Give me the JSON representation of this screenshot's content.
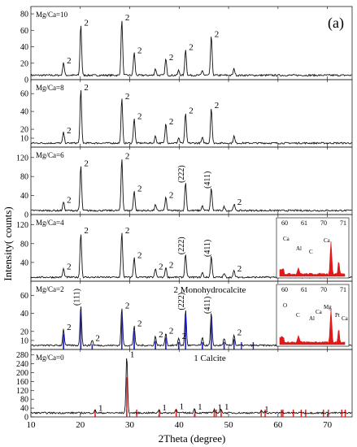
{
  "chart_data": [
    {
      "type": "line",
      "panel_label": "(a)",
      "label": "Mg/Ca=10",
      "yticks": [
        0,
        20,
        40,
        60,
        80
      ],
      "ylim": [
        0,
        85
      ],
      "peaks": [
        {
          "x": 16.6,
          "y": 16,
          "label": "2"
        },
        {
          "x": 20.1,
          "y": 62,
          "label": "2"
        },
        {
          "x": 28.4,
          "y": 68,
          "label": "2"
        },
        {
          "x": 30.9,
          "y": 28,
          "label": "2"
        },
        {
          "x": 35.2,
          "y": 8,
          "label": ""
        },
        {
          "x": 37.3,
          "y": 20,
          "label": "2"
        },
        {
          "x": 39.9,
          "y": 6,
          "label": ""
        },
        {
          "x": 41.3,
          "y": 32,
          "label": "2"
        },
        {
          "x": 44.7,
          "y": 6,
          "label": ""
        },
        {
          "x": 46.5,
          "y": 48,
          "label": "2"
        },
        {
          "x": 51.1,
          "y": 8,
          "label": ""
        }
      ]
    },
    {
      "type": "line",
      "label": "Mg/Ca=8",
      "yticks": [
        10,
        20,
        40,
        60
      ],
      "ylim": [
        0,
        72
      ],
      "peaks": [
        {
          "x": 16.6,
          "y": 12,
          "label": "2"
        },
        {
          "x": 20.1,
          "y": 60,
          "label": "2"
        },
        {
          "x": 28.4,
          "y": 50,
          "label": "2"
        },
        {
          "x": 30.9,
          "y": 28,
          "label": "2"
        },
        {
          "x": 35.2,
          "y": 8,
          "label": ""
        },
        {
          "x": 37.3,
          "y": 22,
          "label": "2"
        },
        {
          "x": 39.9,
          "y": 6,
          "label": ""
        },
        {
          "x": 41.3,
          "y": 34,
          "label": "2"
        },
        {
          "x": 44.7,
          "y": 6,
          "label": ""
        },
        {
          "x": 46.5,
          "y": 40,
          "label": "2"
        },
        {
          "x": 51.1,
          "y": 8,
          "label": ""
        }
      ]
    },
    {
      "type": "line",
      "label": "Mg/Ca=6",
      "yticks": [
        0,
        40,
        80,
        120
      ],
      "ylim": [
        0,
        135
      ],
      "peaks": [
        {
          "x": 16.6,
          "y": 18,
          "label": "2"
        },
        {
          "x": 20.1,
          "y": 95,
          "label": "2"
        },
        {
          "x": 28.4,
          "y": 110,
          "label": "2"
        },
        {
          "x": 30.9,
          "y": 42,
          "label": "2"
        },
        {
          "x": 35.2,
          "y": 12,
          "label": ""
        },
        {
          "x": 37.3,
          "y": 28,
          "label": "2"
        },
        {
          "x": 41.3,
          "y": 60,
          "label": "(222)"
        },
        {
          "x": 44.7,
          "y": 10,
          "label": ""
        },
        {
          "x": 46.5,
          "y": 48,
          "label": "(411)"
        },
        {
          "x": 49.1,
          "y": 8,
          "label": ""
        },
        {
          "x": 51.1,
          "y": 14,
          "label": "2"
        }
      ]
    },
    {
      "type": "line",
      "label": "Mg/Ca=4",
      "yticks": [
        40,
        80,
        120
      ],
      "ylim": [
        0,
        135
      ],
      "peaks": [
        {
          "x": 16.6,
          "y": 18,
          "label": "2"
        },
        {
          "x": 20.1,
          "y": 95,
          "label": "2"
        },
        {
          "x": 28.4,
          "y": 95,
          "label": "2"
        },
        {
          "x": 30.9,
          "y": 42,
          "label": "2"
        },
        {
          "x": 35.2,
          "y": 18,
          "label": "2"
        },
        {
          "x": 37.3,
          "y": 22,
          "label": "2"
        },
        {
          "x": 41.3,
          "y": 50,
          "label": "(222)"
        },
        {
          "x": 44.7,
          "y": 10,
          "label": ""
        },
        {
          "x": 46.5,
          "y": 45,
          "label": "(411)"
        },
        {
          "x": 49.1,
          "y": 8,
          "label": ""
        },
        {
          "x": 51.1,
          "y": 14,
          "label": "2"
        }
      ],
      "inset": {
        "axis_ticks": [
          "60",
          "61",
          "70",
          "71"
        ],
        "labels": [
          "Ca",
          "Al",
          "C",
          "Ca"
        ]
      }
    },
    {
      "type": "line",
      "label": "Mg/Ca=2",
      "legend": "2 Monohydrocalcite",
      "yticks": [
        10,
        20,
        40,
        60
      ],
      "ylim": [
        0,
        72
      ],
      "reference_color": "#1f1fd6",
      "reference_lines": [
        16.6,
        20.1,
        28.4,
        30.9,
        35.2,
        37.3,
        39.9,
        41.3,
        44.7,
        46.5,
        49.1,
        51.1,
        52.6,
        55.0
      ],
      "peaks": [
        {
          "x": 16.6,
          "y": 18,
          "label": "2"
        },
        {
          "x": 20.1,
          "y": 45,
          "label": "(111)"
        },
        {
          "x": 22.4,
          "y": 6,
          "label": "2"
        },
        {
          "x": 28.4,
          "y": 42,
          "label": "2"
        },
        {
          "x": 30.9,
          "y": 22,
          "label": "2"
        },
        {
          "x": 35.2,
          "y": 10,
          "label": "2"
        },
        {
          "x": 37.3,
          "y": 14,
          "label": "2"
        },
        {
          "x": 39.9,
          "y": 8,
          "label": "2"
        },
        {
          "x": 41.3,
          "y": 40,
          "label": "(222)"
        },
        {
          "x": 44.7,
          "y": 8,
          "label": ""
        },
        {
          "x": 46.5,
          "y": 36,
          "label": "(411)"
        },
        {
          "x": 49.1,
          "y": 8,
          "label": ""
        },
        {
          "x": 51.1,
          "y": 12,
          "label": "2"
        }
      ],
      "inset": {
        "axis_ticks": [
          "60",
          "61",
          "70",
          "71"
        ],
        "labels": [
          "O",
          "C",
          "Al",
          "Mg",
          "Pt",
          "Ca",
          "Ca"
        ]
      }
    },
    {
      "type": "line",
      "label": "Mg/Ca=0",
      "legend": "1 Calcite",
      "yticks": [
        0,
        40,
        80,
        120,
        160,
        200,
        240,
        280
      ],
      "ylim": [
        0,
        290
      ],
      "reference_color": "#e01919",
      "reference_lines": [
        23.0,
        29.4,
        31.4,
        36.0,
        39.4,
        43.2,
        47.1,
        47.5,
        48.5,
        56.6,
        57.4,
        60.7,
        61.0,
        63.1,
        64.7,
        65.6,
        69.2,
        70.2,
        72.9,
        73.6
      ],
      "peaks": [
        {
          "x": 23.0,
          "y": 12,
          "label": "1"
        },
        {
          "x": 29.4,
          "y": 255,
          "label": "1"
        },
        {
          "x": 35.9,
          "y": 14,
          "label": "1"
        },
        {
          "x": 39.4,
          "y": 20,
          "label": "1"
        },
        {
          "x": 43.1,
          "y": 18,
          "label": "1"
        },
        {
          "x": 47.1,
          "y": 16,
          "label": "1"
        },
        {
          "x": 48.5,
          "y": 18,
          "label": "1"
        },
        {
          "x": 56.6,
          "y": 8,
          "label": "1"
        },
        {
          "x": 57.4,
          "y": 6,
          "label": ""
        },
        {
          "x": 60.7,
          "y": 4,
          "label": ""
        },
        {
          "x": 64.7,
          "y": 4,
          "label": ""
        }
      ]
    }
  ],
  "axes": {
    "xlabel": "2Theta (degree)",
    "ylabel": "Intensity( counts)",
    "xlim": [
      10,
      75
    ],
    "xticks": [
      10,
      20,
      30,
      40,
      50,
      60,
      70
    ]
  },
  "colors": {
    "line": "#111111",
    "blue_refs": "#1f1fd6",
    "red_refs": "#e01919",
    "frame": "#222222"
  }
}
